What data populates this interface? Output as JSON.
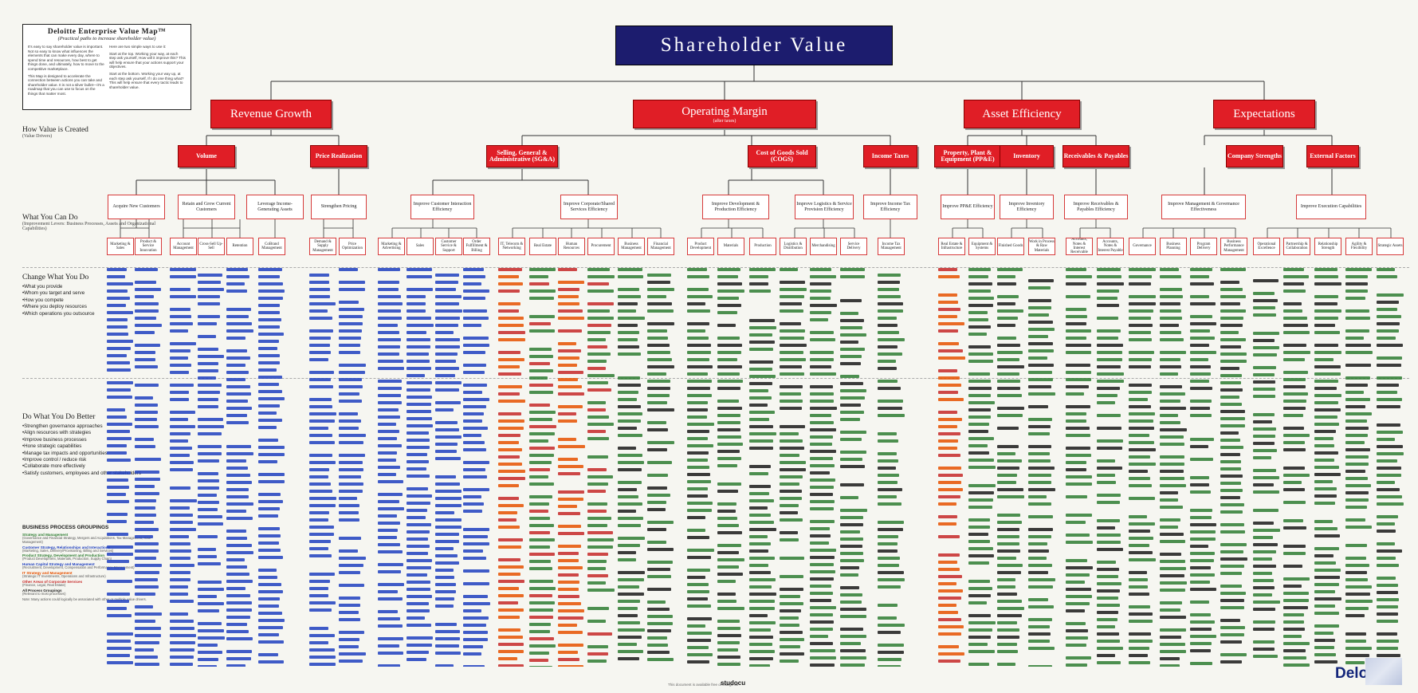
{
  "intro": {
    "title": "Deloitte Enterprise Value Map™",
    "subtitle": "(Practical paths to increase shareholder value)",
    "left_paragraphs": [
      "It's easy to say shareholder value is important. Not so easy to know what influences the elements that can make every day, where to spend time and resources, how best to get things done, and ultimately, how to move to the competitive marketplace.",
      "This Map is designed to accelerate the connection between actions you can take and shareholder value. It is not a silver bullet—it's a roadmap that you can use to focus on the things that matter most."
    ],
    "right_paragraphs": [
      "Here are two simple ways to use it:",
      "Start at the top. Working your way, at each step ask yourself, How will it improve this? This will help ensure that your actions support your objectives.",
      "Start at the bottom. Working your way up, at each step ask yourself, If I do one thing what? This will help ensure that every tactic leads to shareholder value."
    ]
  },
  "how_value": {
    "heading": "How Value is Created",
    "note": "(Value Drivers)"
  },
  "what_can_do": {
    "heading": "What You Can Do",
    "note": "(Improvement Levers: Business Processes, Assets and Organizational Capabilities)"
  },
  "change": {
    "heading": "Change What You Do",
    "items": [
      "What you provide",
      "Whom you target and serve",
      "How you compete",
      "Where you deploy resources",
      "Which operations you outsource"
    ]
  },
  "do_better": {
    "heading": "Do What You Do Better",
    "items": [
      "Strengthen governance approaches",
      "Align resources with strategies",
      "Improve business processes",
      "Hone strategic capabilities",
      "Manage tax impacts and opportunities",
      "Improve control / reduce risk",
      "Collaborate more effectively",
      "Satisfy customers, employees and other stakeholders"
    ]
  },
  "bpg": {
    "heading": "BUSINESS PROCESS GROUPINGS",
    "groups": [
      {
        "title": "Strategy and Management",
        "desc": "(Governance and Financial Strategy, Mergers and Acquisitions, Tax Management, Risk Management)",
        "color": "#2e7d32"
      },
      {
        "title": "Customer Strategy, Relationships and Interactions",
        "desc": "(Marketing, Sales, Delivery/Provisioning, Billing and Services)",
        "color": "#1f3fbf"
      },
      {
        "title": "Product Strategy, Development and Production",
        "desc": "(Product Development, Materials, Production, Supply Chain)",
        "color": "#2e7d32"
      },
      {
        "title": "Human Capital Strategy and Management",
        "desc": "(Recruitment, Development, Compensation and Performance Management)",
        "color": "#1f3fbf"
      },
      {
        "title": "IT Strategy and Management",
        "desc": "(Strategic IT Investments, Operations and Infrastructure)",
        "color": "#e65100"
      },
      {
        "title": "Other Areas of Corporate Services",
        "desc": "(Finance, Legal, Real Estate)",
        "color": "#c62828"
      },
      {
        "title": "All Process Groupings",
        "desc": "(Relevant to most processes)",
        "color": "#1a1a1a"
      }
    ],
    "note": "Note: Many actions could logically be associated with other or multiple value drivers."
  },
  "top": {
    "title": "Shareholder Value"
  },
  "l1": [
    {
      "label": "Revenue Growth",
      "sub": ""
    },
    {
      "label": "Operating Margin",
      "sub": "(after taxes)"
    },
    {
      "label": "Asset Efficiency",
      "sub": ""
    },
    {
      "label": "Expectations",
      "sub": ""
    }
  ],
  "l2": [
    "Volume",
    "Price Realization",
    "Selling, General & Administrative (SG&A)",
    "Cost of Goods Sold (COGS)",
    "Income Taxes",
    "Property, Plant & Equipment (PP&E)",
    "Inventory",
    "Receivables & Payables",
    "Company Strengths",
    "External Factors"
  ],
  "l3": [
    "Acquire New Customers",
    "Retain and Grow Current Customers",
    "Leverage Income-Generating Assets",
    "Strengthen Pricing",
    "Improve Customer Interaction Efficiency",
    "Improve Corporate/Shared Services Efficiency",
    "Improve Development & Production Efficiency",
    "Improve Logistics & Service Provision Efficiency",
    "Improve Income Tax Efficiency",
    "Improve PP&E Efficiency",
    "Improve Inventory Efficiency",
    "Improve Receivables & Payables Efficiency",
    "Improve Management & Governance Effectiveness",
    "Improve Execution Capabilities"
  ],
  "l4": [
    "Marketing & Sales",
    "Product & Service Innovation",
    "Account Management",
    "Cross-Sell Up-Sell",
    "Retention",
    "CoBrand Management",
    "Demand & Supply Management",
    "Price Optimization",
    "Marketing & Advertising",
    "Sales",
    "Customer Service & Support",
    "Order Fulfillment & Billing",
    "IT, Telecom & Networking",
    "Real Estate",
    "Human Resources",
    "Procurement",
    "Business Management",
    "Financial Management",
    "Product Development",
    "Materials",
    "Production",
    "Logistics & Distribution",
    "Merchandising",
    "Service Delivery",
    "Income Tax Management",
    "Real Estate & Infrastructure",
    "Equipment & Systems",
    "Finished Goods",
    "Work in Process & Raw Materials",
    "Accounts, Notes & Interest Receivable",
    "Accounts, Notes & Interest Payable",
    "Governance",
    "Business Planning",
    "Program Delivery",
    "Business Performance Management",
    "Operational Excellence",
    "Partnership & Collaboration",
    "Relationship Strength",
    "Agility & Flexibility",
    "Strategic Assets"
  ],
  "footer": {
    "text": "This document is available free of charge on",
    "studocu": "studocu",
    "brand": "Delo"
  }
}
